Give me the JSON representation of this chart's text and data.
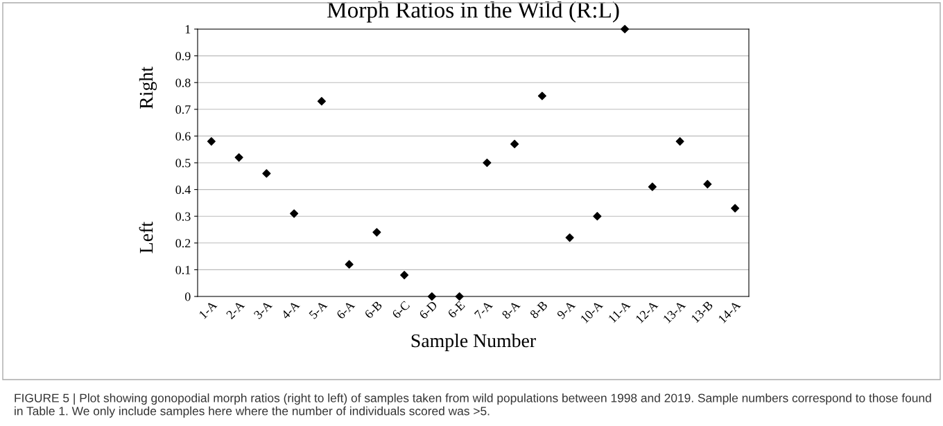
{
  "chart_data": {
    "type": "scatter",
    "title": "Morph Ratios in the Wild (R:L)",
    "xlabel": "Sample Number",
    "categories": [
      "1-A",
      "2-A",
      "3-A",
      "4-A",
      "5-A",
      "6-A",
      "6-B",
      "6-C",
      "6-D",
      "6-E",
      "7-A",
      "8-A",
      "8-B",
      "9-A",
      "10-A",
      "11-A",
      "12-A",
      "13-A",
      "13-B",
      "14-A"
    ],
    "values": [
      0.58,
      0.52,
      0.46,
      0.31,
      0.73,
      0.12,
      0.24,
      0.08,
      0,
      0,
      0.5,
      0.57,
      0.75,
      0.22,
      0.3,
      1,
      0.41,
      0.58,
      0.42,
      0.33
    ],
    "color": "#000000",
    "marker": "diamond",
    "grid": "y",
    "ylim": [
      0,
      1
    ],
    "yticks": [
      0,
      0.1,
      0.2,
      0.3,
      0.4,
      0.5,
      0.6,
      0.7,
      0.8,
      0.9,
      1
    ],
    "annotations": [
      "Right",
      "Left",
      "FIGURE 5 | Plot showing gonopodial morph ratios (right to left) of samples taken from wild populations between 1998 and 2019. Sample numbers correspond to those found in Table 1. We only include samples here where the number of individuals scored was >5."
    ]
  }
}
